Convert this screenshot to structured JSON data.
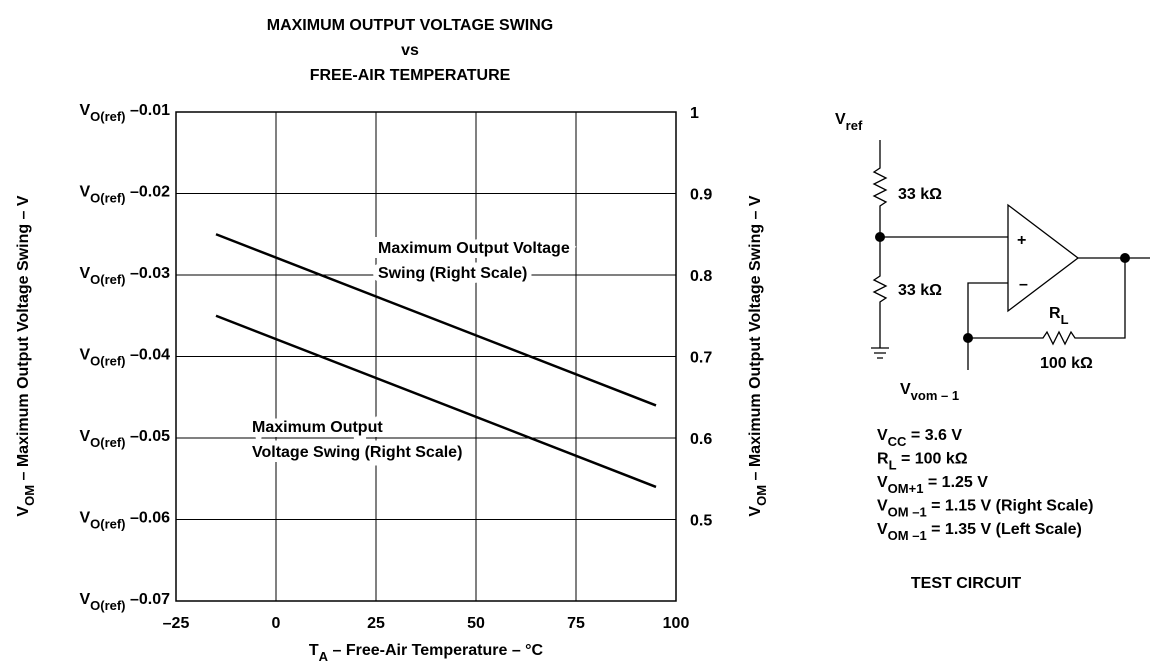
{
  "chart_data": {
    "type": "line",
    "title": [
      "MAXIMUM OUTPUT VOLTAGE SWING",
      "vs",
      "FREE-AIR TEMPERATURE"
    ],
    "x_label": {
      "base": "T",
      "sub": "A",
      "rest": " – Free-Air Temperature – °C"
    },
    "y_label": {
      "base": "V",
      "sub": "OM",
      "rest": " – Maximum Output Voltage Swing – V"
    },
    "y2_label": {
      "base": "V",
      "sub": "OM",
      "rest": " – Maximum Output Voltage Swing – V"
    },
    "ytick_prefix": {
      "base": "V",
      "sub": "O(ref)"
    },
    "x": [
      -15,
      95
    ],
    "series": [
      {
        "name": [
          "Maximum Output Voltage",
          "Swing (Right Scale)"
        ],
        "color": "#000000",
        "values": [
          0.85,
          0.64
        ],
        "axis": "y2"
      },
      {
        "name": [
          "Maximum Output",
          "Voltage Swing (Right Scale)"
        ],
        "color": "#000000",
        "values": [
          0.75,
          0.54
        ],
        "axis": "y2"
      }
    ],
    "xlim": [
      -25,
      100
    ],
    "xticks": [
      {
        "value": -25,
        "label": "–25"
      },
      0,
      25,
      50,
      75,
      100
    ],
    "ylim": [
      -0.07,
      -0.01
    ],
    "yticks": [
      {
        "value": -0.07,
        "label": " –0.07"
      },
      {
        "value": -0.06,
        "label": " –0.06"
      },
      {
        "value": -0.05,
        "label": " –0.05"
      },
      {
        "value": -0.04,
        "label": " –0.04"
      },
      {
        "value": -0.03,
        "label": " –0.03"
      },
      {
        "value": -0.02,
        "label": " –0.02"
      },
      {
        "value": -0.01,
        "label": " –0.01"
      }
    ],
    "y2lim": [
      0.4,
      1
    ],
    "y2ticks": [
      0.5,
      0.6,
      0.7,
      0.8,
      0.9,
      1
    ],
    "grid": true
  },
  "test_circuit": {
    "vref": {
      "base": "V",
      "sub": "ref"
    },
    "r1": "33 kΩ",
    "r2": "33 kΩ",
    "plus": "+",
    "minus": "–",
    "rl": {
      "base": "R",
      "sub": "L"
    },
    "rl_value": "100 kΩ",
    "vvom": {
      "base": "V",
      "sub": "vom – 1"
    },
    "conditions": [
      {
        "base": "V",
        "sub": "CC",
        "rest": " = 3.6 V"
      },
      {
        "base": "R",
        "sub": "L",
        "rest": " = 100 kΩ"
      },
      {
        "base": "V",
        "sub": "OM+1",
        "rest": " = 1.25 V"
      },
      {
        "base": "V",
        "sub": "OM –1",
        "rest": " = 1.15 V (Right Scale)"
      },
      {
        "base": "V",
        "sub": "OM –1",
        "rest": " = 1.35 V (Left Scale)"
      }
    ],
    "caption": "TEST CIRCUIT"
  }
}
